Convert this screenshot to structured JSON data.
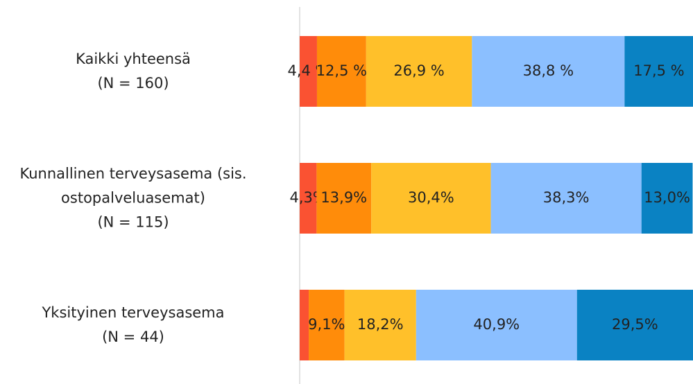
{
  "chart_data": {
    "type": "stacked_barh",
    "categories": [
      "Kaikki yhteensä\n(N = 160)",
      "Kunnallinen terveysasema (sis.\nostopalveluasemat)\n(N = 115)",
      "Yksityinen terveysasema\n(N = 44)"
    ],
    "series": [
      {
        "color": "#fa5232",
        "values": [
          4.4,
          4.3,
          2.3
        ],
        "value_labels": [
          "4,4 %",
          "4,3%",
          null
        ]
      },
      {
        "color": "#ff8c0a",
        "values": [
          12.5,
          13.9,
          9.1
        ],
        "value_labels": [
          "12,5 %",
          "13,9%",
          "9,1%"
        ]
      },
      {
        "color": "#ffc02a",
        "values": [
          26.9,
          30.4,
          18.2
        ],
        "value_labels": [
          "26,9 %",
          "30,4%",
          "18,2%"
        ]
      },
      {
        "color": "#8bbfff",
        "values": [
          38.8,
          38.3,
          40.9
        ],
        "value_labels": [
          "38,8 %",
          "38,3%",
          "40,9%"
        ]
      },
      {
        "color": "#0a82c3",
        "values": [
          17.5,
          13.0,
          29.5
        ],
        "value_labels": [
          "17,5 %",
          "13,0%",
          "29,5%"
        ]
      }
    ],
    "xlim": [
      0,
      100
    ]
  }
}
